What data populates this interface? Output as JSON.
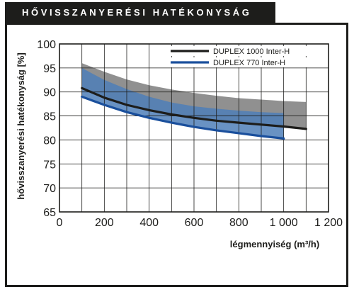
{
  "header": {
    "title": "HŐVISSZANYERÉSI HATÉKONYSÁG"
  },
  "chart_data": {
    "type": "line",
    "xlabel": "légmennyiség (m³/h)",
    "ylabel": "hővisszanyerési hatékonyság [%]",
    "xlim": [
      0,
      1200
    ],
    "ylim": [
      65,
      100
    ],
    "x_ticks": [
      0,
      200,
      400,
      600,
      800,
      1000,
      1200
    ],
    "x_tick_labels": [
      "0",
      "200",
      "400",
      "600",
      "800",
      "1 000",
      "1 200"
    ],
    "y_ticks": [
      65,
      70,
      75,
      80,
      85,
      90,
      95,
      100
    ],
    "y_tick_labels": [
      "65",
      "70",
      "75",
      "80",
      "85",
      "90",
      "95",
      "100"
    ],
    "grid": true,
    "legend_position": "top-right",
    "colors": {
      "duplex1000_line": "#1d1d1b",
      "duplex1000_band": "#8a8a8a",
      "duplex770_line": "#1a4f9c",
      "duplex770_band": "#4f7fb8",
      "panel_border": "#1d1d1b"
    },
    "series": [
      {
        "name": "DUPLEX 1000 Inter-H",
        "x": [
          100,
          200,
          300,
          400,
          500,
          600,
          700,
          800,
          900,
          1000,
          1100
        ],
        "values": [
          90.8,
          88.8,
          87.3,
          86.2,
          85.3,
          84.6,
          84.0,
          83.6,
          83.2,
          82.8,
          82.3
        ],
        "band_upper": [
          96.0,
          94.2,
          92.6,
          91.4,
          90.5,
          89.8,
          89.2,
          88.7,
          88.4,
          88.1,
          87.9
        ],
        "band_lower": [
          90.8,
          88.8,
          87.3,
          86.2,
          85.3,
          84.6,
          84.0,
          83.6,
          83.2,
          82.8,
          82.3
        ]
      },
      {
        "name": "DUPLEX 770 Inter-H",
        "x": [
          100,
          200,
          300,
          400,
          500,
          600,
          700,
          800,
          900,
          1000
        ],
        "values": [
          89.0,
          87.3,
          85.8,
          84.6,
          83.6,
          82.7,
          82.0,
          81.4,
          80.8,
          80.3
        ],
        "band_upper": [
          95.0,
          92.5,
          90.6,
          89.0,
          87.8,
          87.0,
          86.5,
          86.1,
          85.8,
          85.6
        ],
        "band_lower": [
          89.0,
          87.3,
          85.8,
          84.6,
          83.6,
          82.7,
          82.0,
          81.4,
          80.8,
          80.3
        ]
      }
    ]
  }
}
